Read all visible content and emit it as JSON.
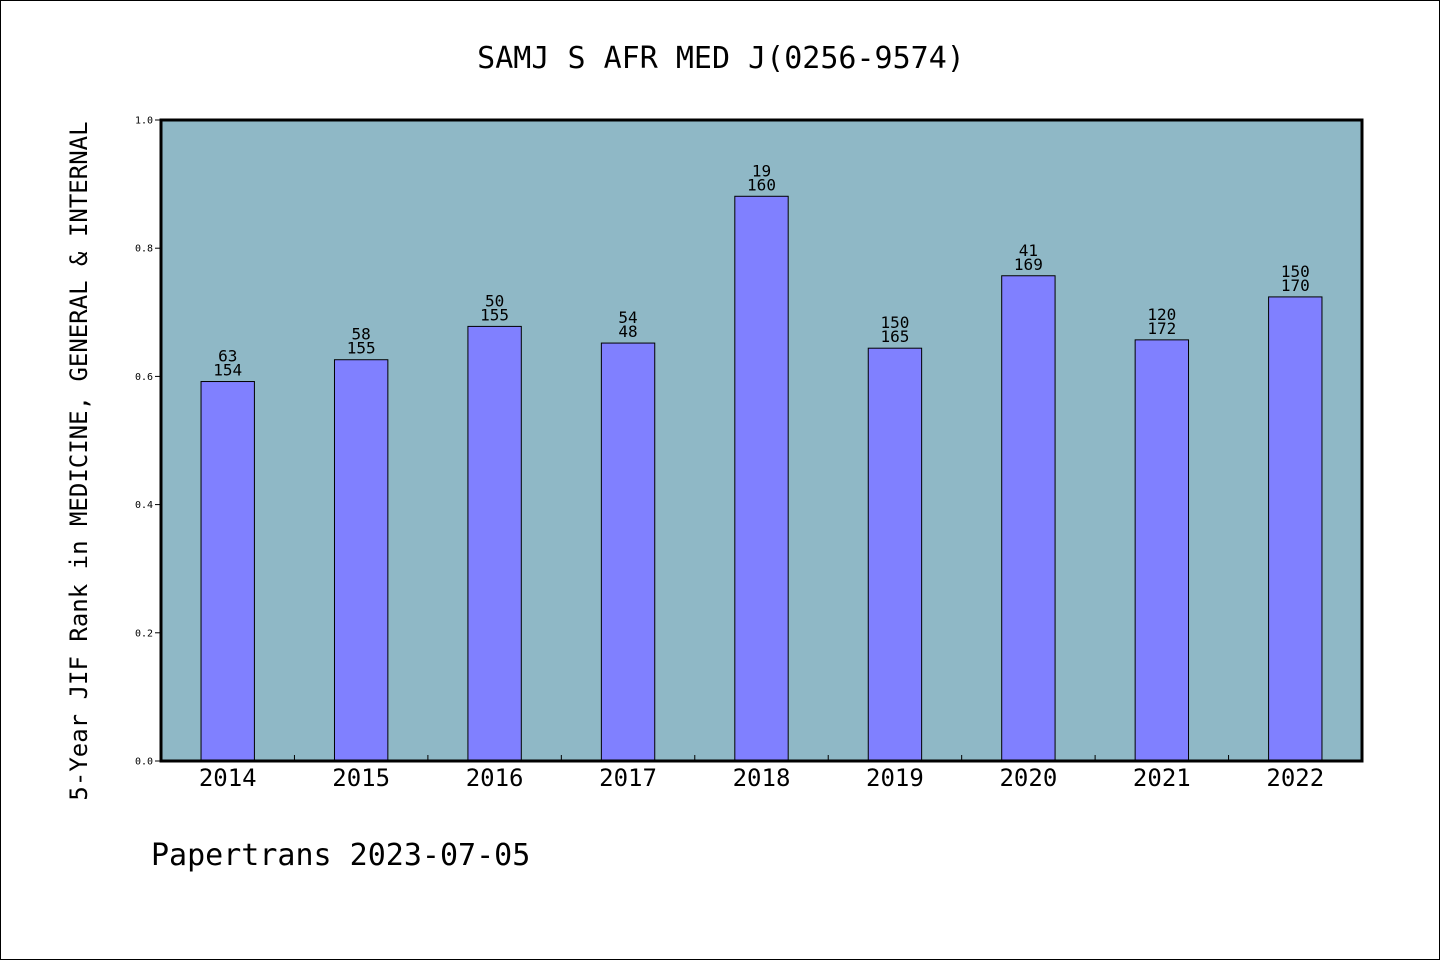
{
  "chart_data": {
    "type": "bar",
    "title": "SAMJ S AFR MED J(0256-9574)",
    "xlabel": "",
    "ylabel": "5-Year JIF Rank in MEDICINE, GENERAL & INTERNAL",
    "categories": [
      "2014",
      "2015",
      "2016",
      "2017",
      "2018",
      "2019",
      "2020",
      "2021",
      "2022"
    ],
    "values": [
      0.592,
      0.626,
      0.678,
      0.652,
      0.881,
      0.644,
      0.757,
      0.657,
      0.724
    ],
    "rank_labels": [
      "63",
      "58",
      "50",
      "54",
      "19",
      "150",
      "41",
      "120",
      "150"
    ],
    "total_labels": [
      "154",
      "155",
      "155",
      "48",
      "160",
      "165",
      "169",
      "172",
      "170"
    ],
    "ylim": [
      0,
      1.0
    ],
    "yticks": [
      "0.0",
      "0.2",
      "0.4",
      "0.6",
      "0.8",
      "1.0"
    ],
    "grid": false,
    "colors": {
      "plot_background": "#8fb8c6",
      "bar_fill": "#8080ff",
      "bar_stroke": "#000000"
    }
  },
  "footer": {
    "text": "Papertrans 2023-07-05"
  }
}
